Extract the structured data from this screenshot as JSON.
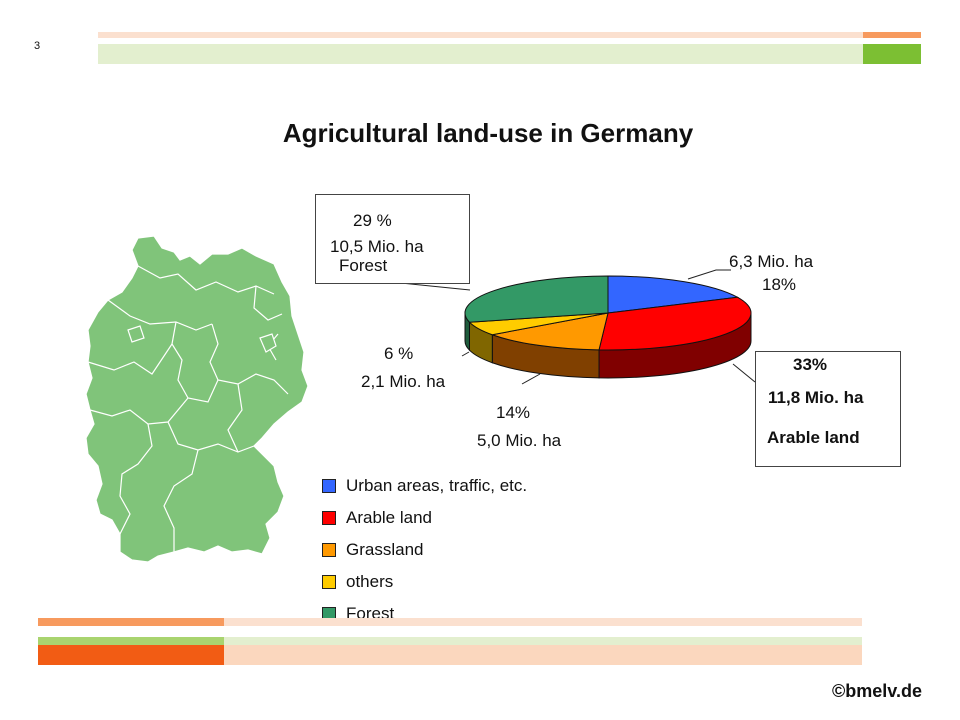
{
  "page": {
    "number": "3",
    "copyright": "©bmelv.de"
  },
  "chart_data": {
    "type": "pie",
    "title": "Agricultural land-use in Germany",
    "categories": [
      "Urban areas, traffic, etc.",
      "Arable land",
      "Grassland",
      "others",
      "Forest"
    ],
    "values": [
      18,
      33,
      14,
      6,
      29
    ],
    "areas": [
      "6,3 Mio. ha",
      "11,8 Mio. ha",
      "5,0 Mio. ha",
      "2,1 Mio. ha",
      "10,5 Mio. ha"
    ],
    "percent_labels": [
      "18%",
      "33%",
      "14%",
      "6 %",
      "29 %"
    ],
    "name_labels": [
      "",
      "Arable land",
      "",
      "",
      "Forest"
    ],
    "colors": [
      "#3366ff",
      "#ff0000",
      "#ff9900",
      "#ffcc00",
      "#339966"
    ],
    "side_colors": [
      "#1f3f9a",
      "#800000",
      "#804000",
      "#806600",
      "#1f5c3d"
    ],
    "legend_position": "bottom-left"
  },
  "map": {
    "description": "",
    "fill_color": "#80c47a"
  }
}
